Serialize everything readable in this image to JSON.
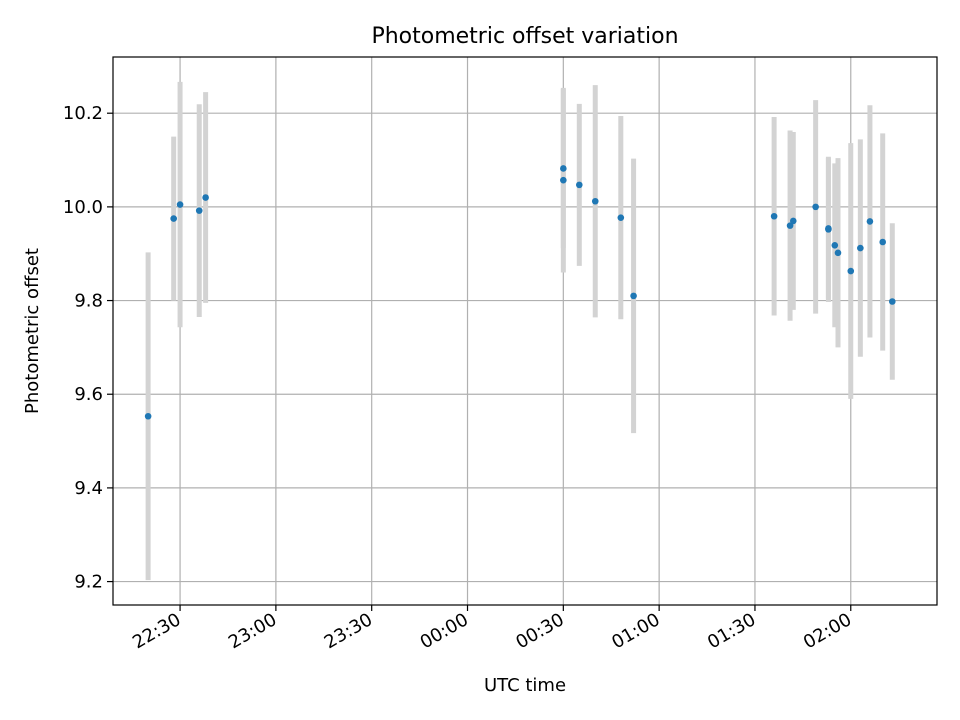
{
  "chart_data": {
    "type": "scatter",
    "title": "Photometric offset variation",
    "xlabel": "UTC time",
    "ylabel": "Photometric offset",
    "x_axis_type": "time",
    "x_range": [
      "22:09",
      "02:27"
    ],
    "y_range": [
      9.15,
      10.32
    ],
    "grid": true,
    "x_ticks": [
      "22:30",
      "23:00",
      "23:30",
      "00:00",
      "00:30",
      "01:00",
      "01:30",
      "02:00"
    ],
    "y_ticks": [
      9.2,
      9.4,
      9.6,
      9.8,
      10.0,
      10.2
    ],
    "marker_color": "#1f77b4",
    "errorbar_color": "#d3d3d3",
    "points": [
      {
        "x": "22:20",
        "y": 9.553,
        "err": 0.35
      },
      {
        "x": "22:28",
        "y": 9.975,
        "err": 0.175
      },
      {
        "x": "22:30",
        "y": 10.005,
        "err": 0.262
      },
      {
        "x": "22:36",
        "y": 9.992,
        "err": 0.227
      },
      {
        "x": "22:38",
        "y": 10.02,
        "err": 0.225
      },
      {
        "x": "00:30",
        "y": 10.082,
        "err": 0.17
      },
      {
        "x": "00:30",
        "y": 10.057,
        "err": 0.197
      },
      {
        "x": "00:35",
        "y": 10.047,
        "err": 0.173
      },
      {
        "x": "00:40",
        "y": 10.012,
        "err": 0.248
      },
      {
        "x": "00:48",
        "y": 9.977,
        "err": 0.217
      },
      {
        "x": "00:52",
        "y": 9.81,
        "err": 0.293
      },
      {
        "x": "01:36",
        "y": 9.98,
        "err": 0.212
      },
      {
        "x": "01:41",
        "y": 9.96,
        "err": 0.203
      },
      {
        "x": "01:42",
        "y": 9.97,
        "err": 0.19
      },
      {
        "x": "01:49",
        "y": 10.0,
        "err": 0.228
      },
      {
        "x": "01:53",
        "y": 9.952,
        "err": 0.155
      },
      {
        "x": "01:53",
        "y": 9.954,
        "err": 0.15
      },
      {
        "x": "01:55",
        "y": 9.918,
        "err": 0.175
      },
      {
        "x": "01:56",
        "y": 9.902,
        "err": 0.202
      },
      {
        "x": "02:00",
        "y": 9.863,
        "err": 0.273
      },
      {
        "x": "02:03",
        "y": 9.912,
        "err": 0.232
      },
      {
        "x": "02:06",
        "y": 9.969,
        "err": 0.248
      },
      {
        "x": "02:10",
        "y": 9.925,
        "err": 0.232
      },
      {
        "x": "02:13",
        "y": 9.798,
        "err": 0.167
      }
    ]
  }
}
